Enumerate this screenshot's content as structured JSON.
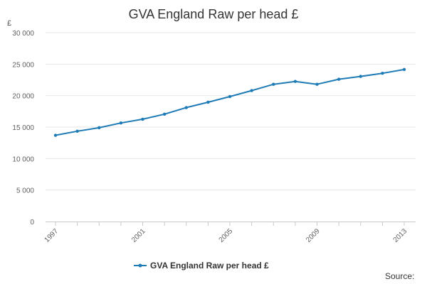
{
  "chart_data": {
    "type": "line",
    "title": "GVA England Raw per head £",
    "ylabel": "£",
    "xlabel": "",
    "x": [
      1997,
      1998,
      1999,
      2000,
      2001,
      2002,
      2003,
      2004,
      2005,
      2006,
      2007,
      2008,
      2009,
      2010,
      2011,
      2012,
      2013
    ],
    "x_tick_labels": [
      "1997",
      "2001",
      "2005",
      "2009",
      "2013"
    ],
    "y_tick_labels": [
      "0",
      "5 000",
      "10 000",
      "15 000",
      "20 000",
      "25 000",
      "30 000"
    ],
    "ylim": [
      0,
      30000
    ],
    "grid": true,
    "legend_position": "bottom-center",
    "series": [
      {
        "name": "GVA England Raw per head £",
        "color": "#1f7bb5",
        "values": [
          13700,
          14350,
          14900,
          15650,
          16250,
          17050,
          18100,
          18950,
          19850,
          20800,
          21800,
          22250,
          21800,
          22600,
          23050,
          23550,
          24150
        ]
      }
    ]
  },
  "footer": {
    "source_label": "Source:"
  }
}
